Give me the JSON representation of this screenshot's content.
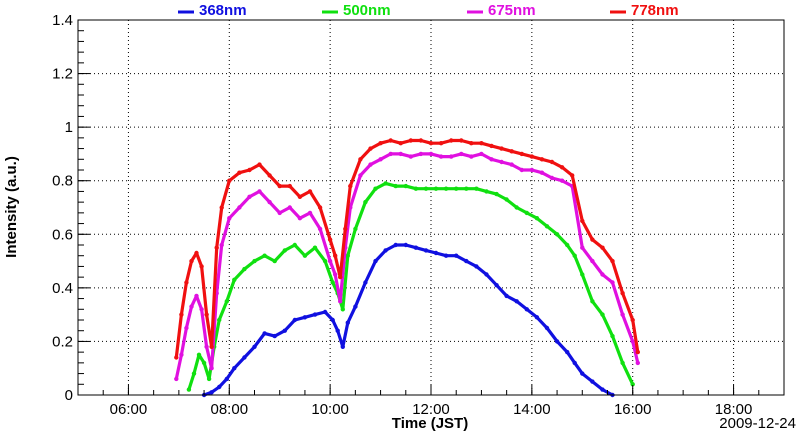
{
  "chart_data": {
    "type": "scatter",
    "title": "",
    "xlabel": "Time (JST)",
    "ylabel": "Intensity (a.u.)",
    "annotation": "2009-12-24",
    "x_unit": "hours",
    "xlim": [
      5.0,
      19.0
    ],
    "ylim": [
      0,
      1.4
    ],
    "x_ticks": [
      {
        "value": 6,
        "label": "06:00"
      },
      {
        "value": 8,
        "label": "08:00"
      },
      {
        "value": 10,
        "label": "10:00"
      },
      {
        "value": 12,
        "label": "12:00"
      },
      {
        "value": 14,
        "label": "14:00"
      },
      {
        "value": 16,
        "label": "16:00"
      },
      {
        "value": 18,
        "label": "18:00"
      }
    ],
    "y_ticks": [
      {
        "value": 0,
        "label": "0"
      },
      {
        "value": 0.2,
        "label": "0.2"
      },
      {
        "value": 0.4,
        "label": "0.4"
      },
      {
        "value": 0.6,
        "label": "0.6"
      },
      {
        "value": 0.8,
        "label": "0.8"
      },
      {
        "value": 1.0,
        "label": "1"
      },
      {
        "value": 1.2,
        "label": "1.2"
      },
      {
        "value": 1.4,
        "label": "1.4"
      }
    ],
    "grid": true,
    "legend_position": "top",
    "series": [
      {
        "name": "368nm",
        "color": "#1010e0",
        "x": [
          7.5,
          7.65,
          7.8,
          7.95,
          8.1,
          8.3,
          8.5,
          8.7,
          8.9,
          9.1,
          9.3,
          9.5,
          9.7,
          9.9,
          10.05,
          10.15,
          10.25,
          10.35,
          10.5,
          10.7,
          10.9,
          11.1,
          11.3,
          11.5,
          11.7,
          11.9,
          12.1,
          12.3,
          12.5,
          12.7,
          12.9,
          13.1,
          13.3,
          13.5,
          13.7,
          13.9,
          14.1,
          14.3,
          14.5,
          14.7,
          14.85,
          15.0,
          15.2,
          15.4,
          15.6
        ],
        "y": [
          0.0,
          0.01,
          0.03,
          0.06,
          0.1,
          0.14,
          0.18,
          0.23,
          0.22,
          0.24,
          0.28,
          0.29,
          0.3,
          0.31,
          0.28,
          0.24,
          0.18,
          0.27,
          0.33,
          0.42,
          0.5,
          0.54,
          0.56,
          0.56,
          0.55,
          0.54,
          0.53,
          0.52,
          0.52,
          0.5,
          0.48,
          0.45,
          0.41,
          0.37,
          0.35,
          0.32,
          0.29,
          0.25,
          0.2,
          0.16,
          0.12,
          0.08,
          0.05,
          0.02,
          0.0
        ]
      },
      {
        "name": "500nm",
        "color": "#10e010",
        "x": [
          7.2,
          7.3,
          7.4,
          7.5,
          7.6,
          7.7,
          7.8,
          7.95,
          8.1,
          8.3,
          8.5,
          8.7,
          8.9,
          9.1,
          9.3,
          9.5,
          9.7,
          9.9,
          10.05,
          10.15,
          10.25,
          10.35,
          10.5,
          10.7,
          10.9,
          11.1,
          11.3,
          11.5,
          11.7,
          11.9,
          12.1,
          12.3,
          12.5,
          12.7,
          12.9,
          13.1,
          13.3,
          13.5,
          13.7,
          13.9,
          14.1,
          14.3,
          14.5,
          14.7,
          14.85,
          15.0,
          15.2,
          15.4,
          15.6,
          15.8,
          16.0
        ],
        "y": [
          0.02,
          0.08,
          0.15,
          0.12,
          0.06,
          0.18,
          0.28,
          0.35,
          0.43,
          0.47,
          0.5,
          0.52,
          0.5,
          0.54,
          0.56,
          0.52,
          0.55,
          0.5,
          0.42,
          0.38,
          0.32,
          0.52,
          0.62,
          0.72,
          0.77,
          0.79,
          0.78,
          0.78,
          0.77,
          0.77,
          0.77,
          0.77,
          0.77,
          0.77,
          0.77,
          0.76,
          0.75,
          0.73,
          0.7,
          0.68,
          0.66,
          0.63,
          0.6,
          0.56,
          0.52,
          0.45,
          0.35,
          0.3,
          0.22,
          0.12,
          0.04
        ]
      },
      {
        "name": "675nm",
        "color": "#e010e0",
        "x": [
          6.95,
          7.05,
          7.15,
          7.25,
          7.35,
          7.45,
          7.55,
          7.65,
          7.75,
          7.85,
          8.0,
          8.2,
          8.4,
          8.6,
          8.8,
          9.0,
          9.2,
          9.4,
          9.6,
          9.8,
          10.0,
          10.1,
          10.2,
          10.3,
          10.4,
          10.6,
          10.8,
          11.0,
          11.2,
          11.4,
          11.6,
          11.8,
          12.0,
          12.2,
          12.4,
          12.6,
          12.8,
          13.0,
          13.2,
          13.4,
          13.6,
          13.8,
          14.0,
          14.2,
          14.4,
          14.6,
          14.8,
          15.0,
          15.2,
          15.4,
          15.6,
          15.8,
          16.0,
          16.1
        ],
        "y": [
          0.06,
          0.15,
          0.25,
          0.33,
          0.37,
          0.32,
          0.18,
          0.1,
          0.38,
          0.56,
          0.66,
          0.7,
          0.74,
          0.76,
          0.72,
          0.68,
          0.7,
          0.66,
          0.68,
          0.62,
          0.5,
          0.45,
          0.35,
          0.55,
          0.7,
          0.82,
          0.86,
          0.88,
          0.9,
          0.9,
          0.89,
          0.9,
          0.9,
          0.89,
          0.89,
          0.9,
          0.89,
          0.9,
          0.88,
          0.87,
          0.86,
          0.84,
          0.84,
          0.83,
          0.81,
          0.8,
          0.78,
          0.55,
          0.5,
          0.45,
          0.42,
          0.3,
          0.2,
          0.12
        ]
      },
      {
        "name": "778nm",
        "color": "#f01010",
        "x": [
          6.95,
          7.05,
          7.15,
          7.25,
          7.35,
          7.45,
          7.55,
          7.65,
          7.75,
          7.85,
          8.0,
          8.2,
          8.4,
          8.6,
          8.8,
          9.0,
          9.2,
          9.4,
          9.6,
          9.8,
          10.0,
          10.1,
          10.2,
          10.3,
          10.4,
          10.6,
          10.8,
          11.0,
          11.2,
          11.4,
          11.6,
          11.8,
          12.0,
          12.2,
          12.4,
          12.6,
          12.8,
          13.0,
          13.2,
          13.4,
          13.6,
          13.8,
          14.0,
          14.2,
          14.4,
          14.6,
          14.8,
          15.0,
          15.2,
          15.4,
          15.6,
          15.8,
          16.0,
          16.1
        ],
        "y": [
          0.14,
          0.3,
          0.42,
          0.5,
          0.53,
          0.48,
          0.3,
          0.18,
          0.55,
          0.7,
          0.8,
          0.83,
          0.84,
          0.86,
          0.82,
          0.78,
          0.78,
          0.74,
          0.76,
          0.7,
          0.58,
          0.52,
          0.44,
          0.62,
          0.78,
          0.88,
          0.92,
          0.94,
          0.95,
          0.94,
          0.95,
          0.95,
          0.94,
          0.94,
          0.95,
          0.95,
          0.94,
          0.94,
          0.93,
          0.92,
          0.91,
          0.9,
          0.89,
          0.88,
          0.87,
          0.85,
          0.82,
          0.65,
          0.58,
          0.55,
          0.5,
          0.38,
          0.28,
          0.16
        ]
      }
    ]
  }
}
